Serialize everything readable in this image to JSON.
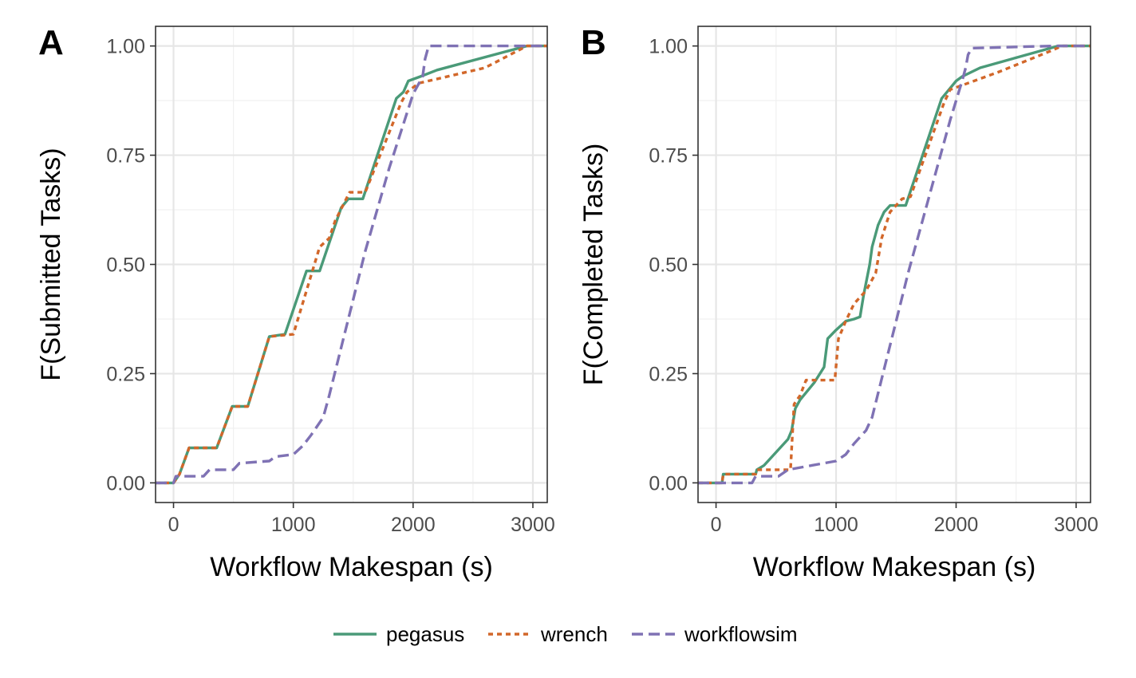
{
  "legend": [
    {
      "name": "pegasus",
      "color": "#4a9a78",
      "dash": "solid"
    },
    {
      "name": "wrench",
      "color": "#d2672a",
      "dash": "dotted"
    },
    {
      "name": "workflowsim",
      "color": "#7f72b4",
      "dash": "dashed"
    }
  ],
  "chart_data": [
    {
      "panel": "A",
      "type": "line",
      "xlabel": "Workflow Makespan (s)",
      "ylabel": "F(Submitted Tasks)",
      "xlim": [
        -150,
        3120
      ],
      "ylim": [
        -0.045,
        1.045
      ],
      "xticks": [
        0,
        1000,
        2000,
        3000
      ],
      "yticks": [
        0.0,
        0.25,
        0.5,
        0.75,
        1.0
      ],
      "xtick_labels": [
        "0",
        "1000",
        "2000",
        "3000"
      ],
      "ytick_labels": [
        "0.00",
        "0.25",
        "0.50",
        "0.75",
        "1.00"
      ],
      "grid": true,
      "series": [
        {
          "name": "pegasus",
          "x": [
            -150,
            0,
            50,
            130,
            360,
            490,
            620,
            800,
            930,
            1110,
            1220,
            1400,
            1460,
            1580,
            1860,
            1920,
            1960,
            2060,
            2200,
            2950,
            3120
          ],
          "y": [
            0,
            0,
            0.02,
            0.08,
            0.08,
            0.175,
            0.175,
            0.335,
            0.34,
            0.485,
            0.485,
            0.63,
            0.65,
            0.65,
            0.88,
            0.895,
            0.92,
            0.93,
            0.945,
            1.0,
            1.0
          ]
        },
        {
          "name": "wrench",
          "x": [
            -150,
            0,
            50,
            130,
            360,
            490,
            620,
            800,
            1000,
            1110,
            1220,
            1300,
            1350,
            1470,
            1600,
            1900,
            1950,
            2050,
            2600,
            2950,
            3120
          ],
          "y": [
            0,
            0,
            0.02,
            0.08,
            0.08,
            0.175,
            0.175,
            0.335,
            0.34,
            0.44,
            0.54,
            0.56,
            0.6,
            0.665,
            0.665,
            0.87,
            0.895,
            0.915,
            0.95,
            1.0,
            1.0
          ]
        },
        {
          "name": "workflowsim",
          "x": [
            -150,
            0,
            20,
            250,
            300,
            500,
            550,
            800,
            850,
            1000,
            1080,
            1150,
            1250,
            1300,
            1400,
            1500,
            1600,
            1800,
            2000,
            2080,
            2100,
            2130,
            2900,
            3120
          ],
          "y": [
            0,
            0,
            0.015,
            0.015,
            0.03,
            0.03,
            0.045,
            0.05,
            0.06,
            0.065,
            0.085,
            0.11,
            0.15,
            0.2,
            0.31,
            0.42,
            0.53,
            0.72,
            0.89,
            0.93,
            0.97,
            1.0,
            1.0,
            1.0
          ]
        }
      ]
    },
    {
      "panel": "B",
      "type": "line",
      "xlabel": "Workflow Makespan (s)",
      "ylabel": "F(Completed Tasks)",
      "xlim": [
        -150,
        3120
      ],
      "ylim": [
        -0.045,
        1.045
      ],
      "xticks": [
        0,
        1000,
        2000,
        3000
      ],
      "yticks": [
        0.0,
        0.25,
        0.5,
        0.75,
        1.0
      ],
      "xtick_labels": [
        "0",
        "1000",
        "2000",
        "3000"
      ],
      "ytick_labels": [
        "0.00",
        "0.25",
        "0.50",
        "0.75",
        "1.00"
      ],
      "grid": true,
      "series": [
        {
          "name": "pegasus",
          "x": [
            -150,
            50,
            60,
            330,
            340,
            400,
            500,
            600,
            630,
            660,
            700,
            820,
            900,
            930,
            1000,
            1080,
            1150,
            1200,
            1230,
            1280,
            1300,
            1330,
            1350,
            1400,
            1450,
            1580,
            1880,
            1940,
            2000,
            2050,
            2200,
            2850,
            3120
          ],
          "y": [
            0,
            0,
            0.02,
            0.02,
            0.03,
            0.04,
            0.07,
            0.1,
            0.12,
            0.17,
            0.19,
            0.23,
            0.265,
            0.33,
            0.35,
            0.37,
            0.375,
            0.38,
            0.43,
            0.5,
            0.54,
            0.57,
            0.59,
            0.62,
            0.635,
            0.635,
            0.88,
            0.9,
            0.92,
            0.93,
            0.95,
            1.0,
            1.0
          ]
        },
        {
          "name": "wrench",
          "x": [
            -150,
            50,
            60,
            330,
            340,
            620,
            650,
            700,
            750,
            990,
            1020,
            1080,
            1150,
            1250,
            1330,
            1380,
            1450,
            1550,
            1620,
            1900,
            1950,
            2100,
            2350,
            2800,
            2880,
            3120
          ],
          "y": [
            0,
            0,
            0.02,
            0.02,
            0.03,
            0.03,
            0.18,
            0.2,
            0.235,
            0.235,
            0.33,
            0.37,
            0.41,
            0.44,
            0.48,
            0.56,
            0.62,
            0.65,
            0.655,
            0.87,
            0.9,
            0.915,
            0.94,
            0.99,
            1.0,
            1.0
          ]
        },
        {
          "name": "workflowsim",
          "x": [
            -150,
            0,
            300,
            330,
            520,
            600,
            900,
            1000,
            1080,
            1150,
            1250,
            1300,
            1400,
            1500,
            1600,
            1800,
            1950,
            2050,
            2080,
            2100,
            2130,
            2800,
            3120
          ],
          "y": [
            0,
            0,
            0,
            0.015,
            0.015,
            0.03,
            0.045,
            0.05,
            0.065,
            0.09,
            0.12,
            0.15,
            0.26,
            0.37,
            0.48,
            0.68,
            0.83,
            0.92,
            0.95,
            0.98,
            0.995,
            1.0,
            1.0
          ]
        }
      ]
    }
  ]
}
